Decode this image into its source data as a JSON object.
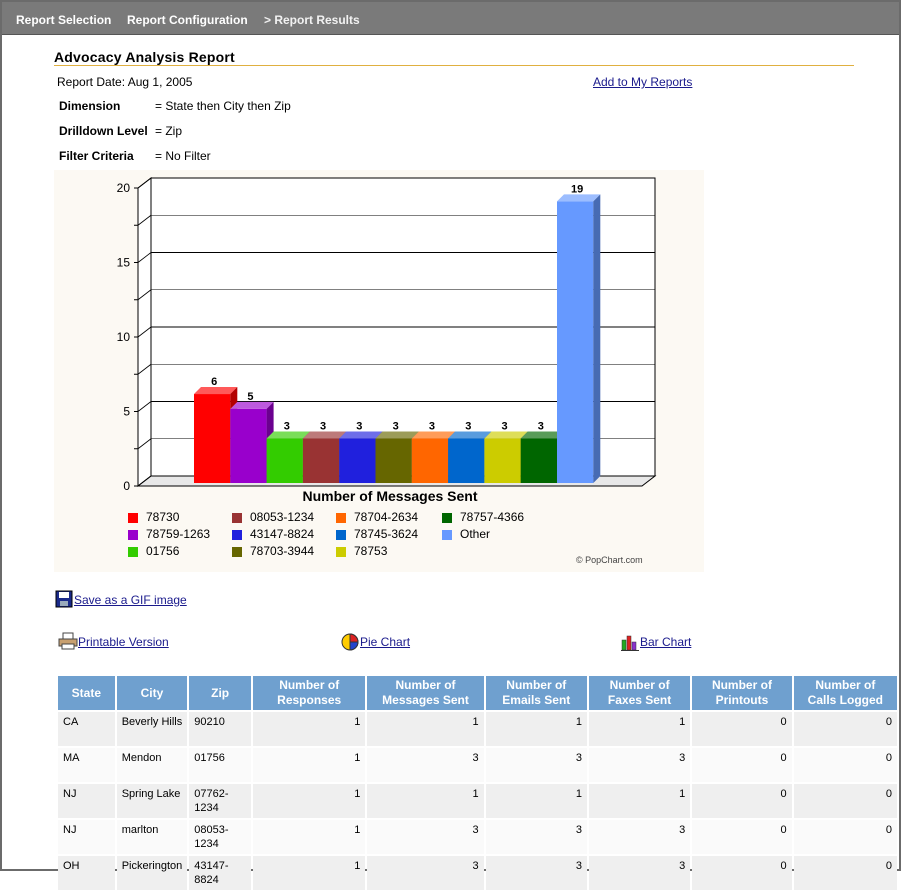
{
  "nav": {
    "items": [
      "Report Selection",
      "Report Configuration",
      "> Report Results"
    ]
  },
  "report": {
    "title": "Advocacy Analysis Report",
    "date": "Report Date: Aug 1, 2005",
    "add_link": "Add to My Reports",
    "dimension_label": "Dimension",
    "dimension_value": "= State then City then Zip",
    "drilldown_label": "Drilldown Level",
    "drilldown_value": "= Zip",
    "filter_label": "Filter Criteria",
    "filter_value": "= No Filter"
  },
  "chart_data": {
    "type": "bar",
    "title": "",
    "xlabel": "Number of Messages Sent",
    "ylabel": "",
    "ylim": [
      0,
      20
    ],
    "yticks": [
      "0",
      "5",
      "10",
      "15",
      "20"
    ],
    "grid": true,
    "style": "3d",
    "categories": [
      "78730",
      "78759-1263",
      "01756",
      "08053-1234",
      "43147-8824",
      "78703-3944",
      "78704-2634",
      "78745-3624",
      "78753",
      "78757-4366",
      "Other"
    ],
    "values": [
      6,
      5,
      3,
      3,
      3,
      3,
      3,
      3,
      3,
      3,
      19
    ],
    "colors": [
      "#ff0000",
      "#9900cc",
      "#33cc00",
      "#993333",
      "#2020dd",
      "#666600",
      "#ff6600",
      "#0066cc",
      "#cccc00",
      "#006600",
      "#6699ff"
    ],
    "legend_order": [
      [
        "78730",
        "08053-1234",
        "78704-2634",
        "78757-4366"
      ],
      [
        "78759-1263",
        "43147-8824",
        "78745-3624",
        "Other"
      ],
      [
        "01756",
        "78703-3944",
        "78753"
      ]
    ],
    "legend_placement": "bottom",
    "credit": "© PopChart.com"
  },
  "actions": {
    "save_gif": "Save as a GIF image",
    "printable": "Printable Version",
    "pie_chart": "Pie Chart",
    "bar_chart": "Bar Chart"
  },
  "table": {
    "headers": [
      "State",
      "City",
      "Zip",
      "Number of Responses",
      "Number of Messages Sent",
      "Number of Emails Sent",
      "Number of Faxes Sent",
      "Number of Printouts",
      "Number of Calls Logged"
    ],
    "header_lines": [
      [
        "State"
      ],
      [
        "City"
      ],
      [
        "Zip"
      ],
      [
        "Number of",
        "Responses"
      ],
      [
        "Number of",
        "Messages Sent"
      ],
      [
        "Number of",
        "Emails Sent"
      ],
      [
        "Number of",
        "Faxes Sent"
      ],
      [
        "Number of",
        "Printouts"
      ],
      [
        "Number of",
        "Calls Logged"
      ]
    ],
    "rows": [
      [
        "CA",
        "Beverly Hills",
        "90210",
        "1",
        "1",
        "1",
        "1",
        "0",
        "0"
      ],
      [
        "MA",
        "Mendon",
        "01756",
        "1",
        "3",
        "3",
        "3",
        "0",
        "0"
      ],
      [
        "NJ",
        "Spring Lake",
        "07762-1234",
        "1",
        "1",
        "1",
        "1",
        "0",
        "0"
      ],
      [
        "NJ",
        "marlton",
        "08053-1234",
        "1",
        "3",
        "3",
        "3",
        "0",
        "0"
      ],
      [
        "OH",
        "Pickerington",
        "43147-8824",
        "1",
        "3",
        "3",
        "3",
        "0",
        "0"
      ]
    ]
  }
}
